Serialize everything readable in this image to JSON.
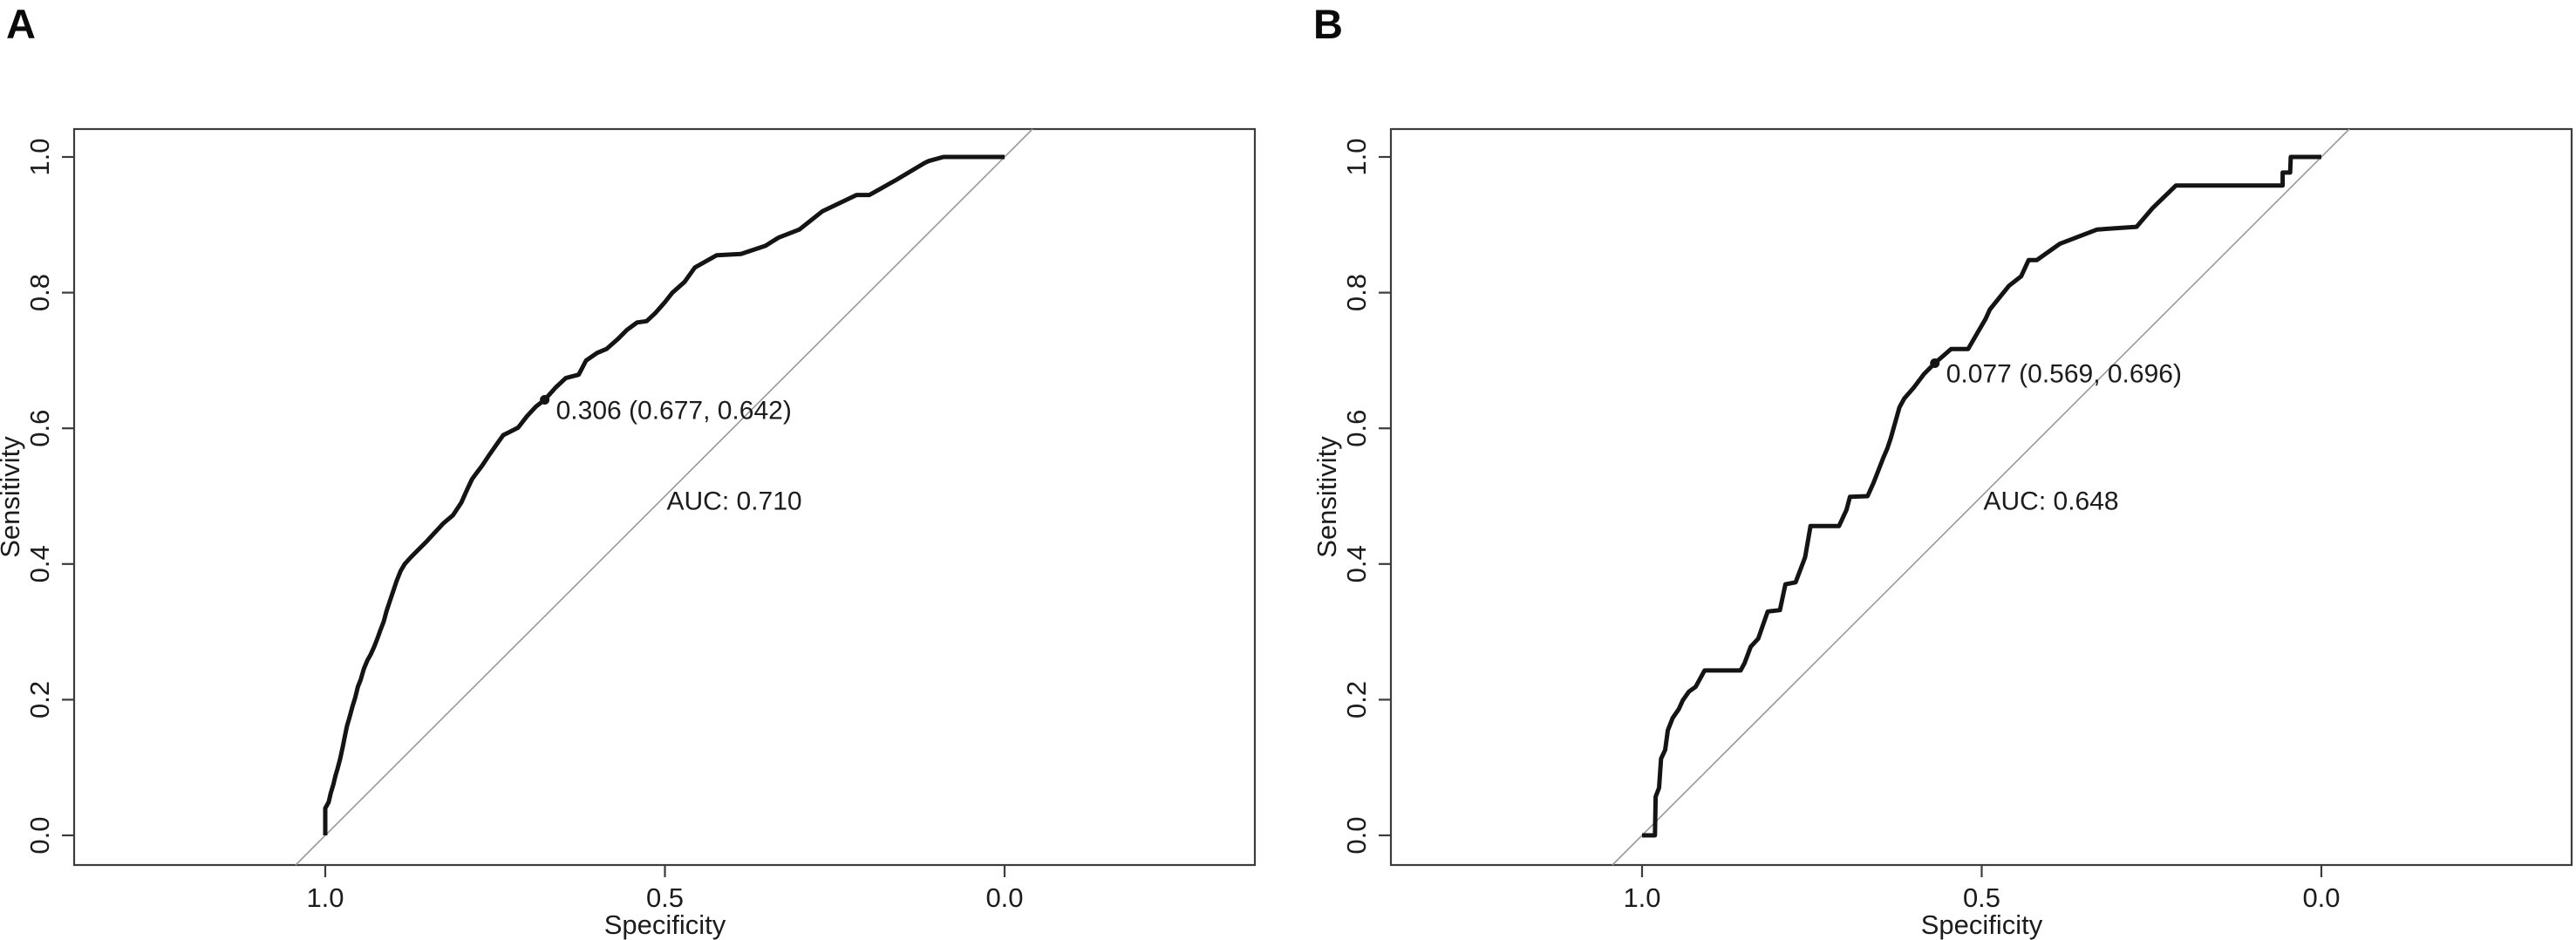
{
  "page": {
    "background": "#ffffff"
  },
  "colors": {
    "curve": "#141414",
    "diagonal_reference": "#999999",
    "frame": "#3c3c3c",
    "text": "#1c1c1c"
  },
  "chart_data": [
    {
      "panel_label": "A",
      "type": "line",
      "xlabel": "Specificity",
      "ylabel": "Sensitivity",
      "x_axis": {
        "direction": "reversed",
        "range": [
          1.0,
          0.0
        ]
      },
      "y_axis": {
        "range": [
          0.0,
          1.0
        ]
      },
      "x_ticks": [
        {
          "value": 1.0,
          "label": "1.0"
        },
        {
          "value": 0.5,
          "label": "0.5"
        },
        {
          "value": 0.0,
          "label": "0.0"
        }
      ],
      "y_ticks": [
        {
          "value": 0.0,
          "label": "0.0"
        },
        {
          "value": 0.2,
          "label": "0.2"
        },
        {
          "value": 0.4,
          "label": "0.4"
        },
        {
          "value": 0.6,
          "label": "0.6"
        },
        {
          "value": 0.8,
          "label": "0.8"
        },
        {
          "value": 1.0,
          "label": "1.0"
        }
      ],
      "auc": 0.71,
      "auc_label": "AUC: 0.710",
      "diagonal_reference": true,
      "best_threshold": {
        "threshold": 0.306,
        "specificity": 0.677,
        "sensitivity": 0.642,
        "label": "0.306 (0.677, 0.642)"
      },
      "roc_points": [
        [
          1.0,
          0.0
        ],
        [
          1.0,
          0.04
        ],
        [
          0.995,
          0.049
        ],
        [
          0.992,
          0.062
        ],
        [
          0.988,
          0.075
        ],
        [
          0.985,
          0.088
        ],
        [
          0.982,
          0.098
        ],
        [
          0.978,
          0.113
        ],
        [
          0.974,
          0.132
        ],
        [
          0.971,
          0.147
        ],
        [
          0.968,
          0.161
        ],
        [
          0.964,
          0.175
        ],
        [
          0.96,
          0.19
        ],
        [
          0.956,
          0.203
        ],
        [
          0.952,
          0.219
        ],
        [
          0.948,
          0.229
        ],
        [
          0.943,
          0.246
        ],
        [
          0.938,
          0.258
        ],
        [
          0.933,
          0.267
        ],
        [
          0.928,
          0.278
        ],
        [
          0.923,
          0.291
        ],
        [
          0.919,
          0.302
        ],
        [
          0.914,
          0.315
        ],
        [
          0.91,
          0.33
        ],
        [
          0.905,
          0.345
        ],
        [
          0.9,
          0.36
        ],
        [
          0.895,
          0.375
        ],
        [
          0.889,
          0.39
        ],
        [
          0.883,
          0.4
        ],
        [
          0.874,
          0.41
        ],
        [
          0.864,
          0.42
        ],
        [
          0.852,
          0.432
        ],
        [
          0.84,
          0.445
        ],
        [
          0.826,
          0.46
        ],
        [
          0.812,
          0.472
        ],
        [
          0.8,
          0.49
        ],
        [
          0.791,
          0.51
        ],
        [
          0.784,
          0.525
        ],
        [
          0.778,
          0.533
        ],
        [
          0.769,
          0.545
        ],
        [
          0.759,
          0.56
        ],
        [
          0.748,
          0.576
        ],
        [
          0.738,
          0.59
        ],
        [
          0.728,
          0.595
        ],
        [
          0.716,
          0.601
        ],
        [
          0.703,
          0.618
        ],
        [
          0.69,
          0.632
        ],
        [
          0.677,
          0.642
        ],
        [
          0.661,
          0.66
        ],
        [
          0.646,
          0.674
        ],
        [
          0.627,
          0.679
        ],
        [
          0.616,
          0.7
        ],
        [
          0.6,
          0.711
        ],
        [
          0.586,
          0.717
        ],
        [
          0.57,
          0.731
        ],
        [
          0.556,
          0.745
        ],
        [
          0.541,
          0.756
        ],
        [
          0.527,
          0.758
        ],
        [
          0.514,
          0.77
        ],
        [
          0.5,
          0.786
        ],
        [
          0.489,
          0.8
        ],
        [
          0.471,
          0.816
        ],
        [
          0.456,
          0.837
        ],
        [
          0.44,
          0.846
        ],
        [
          0.424,
          0.855
        ],
        [
          0.388,
          0.857
        ],
        [
          0.352,
          0.869
        ],
        [
          0.333,
          0.881
        ],
        [
          0.302,
          0.893
        ],
        [
          0.268,
          0.92
        ],
        [
          0.218,
          0.944
        ],
        [
          0.199,
          0.944
        ],
        [
          0.16,
          0.966
        ],
        [
          0.118,
          0.991
        ],
        [
          0.112,
          0.994
        ],
        [
          0.09,
          1.0
        ],
        [
          0.0,
          1.0
        ]
      ]
    },
    {
      "panel_label": "B",
      "type": "line",
      "xlabel": "Specificity",
      "ylabel": "Sensitivity",
      "x_axis": {
        "direction": "reversed",
        "range": [
          1.0,
          0.0
        ]
      },
      "y_axis": {
        "range": [
          0.0,
          1.0
        ]
      },
      "x_ticks": [
        {
          "value": 1.0,
          "label": "1.0"
        },
        {
          "value": 0.5,
          "label": "0.5"
        },
        {
          "value": 0.0,
          "label": "0.0"
        }
      ],
      "y_ticks": [
        {
          "value": 0.0,
          "label": "0.0"
        },
        {
          "value": 0.2,
          "label": "0.2"
        },
        {
          "value": 0.4,
          "label": "0.4"
        },
        {
          "value": 0.6,
          "label": "0.6"
        },
        {
          "value": 0.8,
          "label": "0.8"
        },
        {
          "value": 1.0,
          "label": "1.0"
        }
      ],
      "auc": 0.648,
      "auc_label": "AUC: 0.648",
      "diagonal_reference": true,
      "best_threshold": {
        "threshold": 0.077,
        "specificity": 0.569,
        "sensitivity": 0.696,
        "label": "0.077 (0.569, 0.696)"
      },
      "roc_points": [
        [
          1.0,
          0.0
        ],
        [
          0.981,
          0.0
        ],
        [
          0.98,
          0.057
        ],
        [
          0.975,
          0.07
        ],
        [
          0.972,
          0.113
        ],
        [
          0.966,
          0.126
        ],
        [
          0.962,
          0.155
        ],
        [
          0.955,
          0.173
        ],
        [
          0.946,
          0.186
        ],
        [
          0.94,
          0.199
        ],
        [
          0.931,
          0.212
        ],
        [
          0.921,
          0.219
        ],
        [
          0.908,
          0.243
        ],
        [
          0.855,
          0.243
        ],
        [
          0.849,
          0.254
        ],
        [
          0.84,
          0.278
        ],
        [
          0.829,
          0.29
        ],
        [
          0.815,
          0.33
        ],
        [
          0.797,
          0.332
        ],
        [
          0.789,
          0.37
        ],
        [
          0.774,
          0.373
        ],
        [
          0.76,
          0.41
        ],
        [
          0.752,
          0.456
        ],
        [
          0.71,
          0.456
        ],
        [
          0.699,
          0.48
        ],
        [
          0.694,
          0.499
        ],
        [
          0.668,
          0.5
        ],
        [
          0.659,
          0.52
        ],
        [
          0.645,
          0.556
        ],
        [
          0.639,
          0.57
        ],
        [
          0.634,
          0.585
        ],
        [
          0.621,
          0.631
        ],
        [
          0.614,
          0.644
        ],
        [
          0.6,
          0.66
        ],
        [
          0.585,
          0.68
        ],
        [
          0.569,
          0.696
        ],
        [
          0.545,
          0.717
        ],
        [
          0.52,
          0.717
        ],
        [
          0.494,
          0.762
        ],
        [
          0.488,
          0.775
        ],
        [
          0.46,
          0.81
        ],
        [
          0.442,
          0.824
        ],
        [
          0.431,
          0.848
        ],
        [
          0.419,
          0.848
        ],
        [
          0.385,
          0.872
        ],
        [
          0.33,
          0.893
        ],
        [
          0.272,
          0.897
        ],
        [
          0.248,
          0.925
        ],
        [
          0.214,
          0.958
        ],
        [
          0.057,
          0.958
        ],
        [
          0.057,
          0.977
        ],
        [
          0.046,
          0.977
        ],
        [
          0.045,
          1.0
        ],
        [
          0.0,
          1.0
        ]
      ]
    }
  ]
}
